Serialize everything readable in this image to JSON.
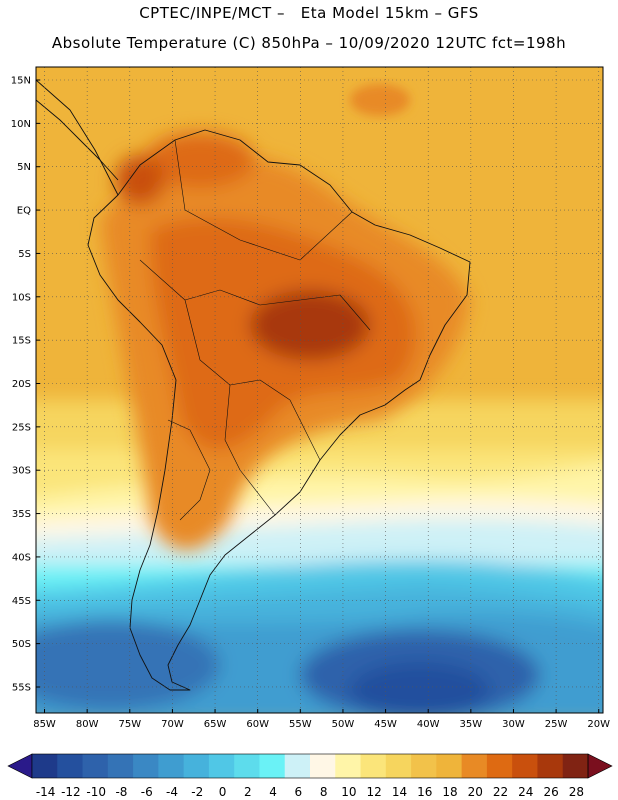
{
  "title": {
    "line1": "CPTEC/INPE/MCT –   Eta Model 15km – GFS",
    "line2": "Absolute Temperature (C) 850hPa – 10/09/2020 12UTC fct=198h"
  },
  "map": {
    "region": "South America",
    "lat_labels": [
      "15N",
      "10N",
      "5N",
      "EQ",
      "5S",
      "10S",
      "15S",
      "20S",
      "25S",
      "30S",
      "35S",
      "40S",
      "45S",
      "50S",
      "55S"
    ],
    "lon_labels": [
      "85W",
      "80W",
      "75W",
      "70W",
      "65W",
      "60W",
      "55W",
      "50W",
      "45W",
      "40W",
      "35W",
      "30W",
      "25W",
      "20W"
    ]
  },
  "colorbar": {
    "ticks": [
      "-14",
      "-12",
      "-10",
      "-8",
      "-6",
      "-4",
      "-2",
      "0",
      "2",
      "4",
      "6",
      "8",
      "10",
      "12",
      "14",
      "16",
      "18",
      "20",
      "22",
      "24",
      "26",
      "28"
    ],
    "colors": [
      "#1e3a8a",
      "#24509e",
      "#2e62ab",
      "#3473b6",
      "#3a88c4",
      "#3f9dd0",
      "#46b2dc",
      "#50c7e6",
      "#5ddcec",
      "#6af2f6",
      "#cdf1f7",
      "#fff7e6",
      "#fff5a8",
      "#fbe57a",
      "#f6d55e",
      "#f2c24a",
      "#efb43a",
      "#e88a25",
      "#de6a12",
      "#c9500d",
      "#a8380c",
      "#802313"
    ]
  },
  "colors": {
    "hot": "#a83510",
    "warm": "#e08a20",
    "mid": "#f3b52e",
    "cool": "#fff8cc",
    "cold": "#55dbf0",
    "deep": "#1d3b8c"
  }
}
